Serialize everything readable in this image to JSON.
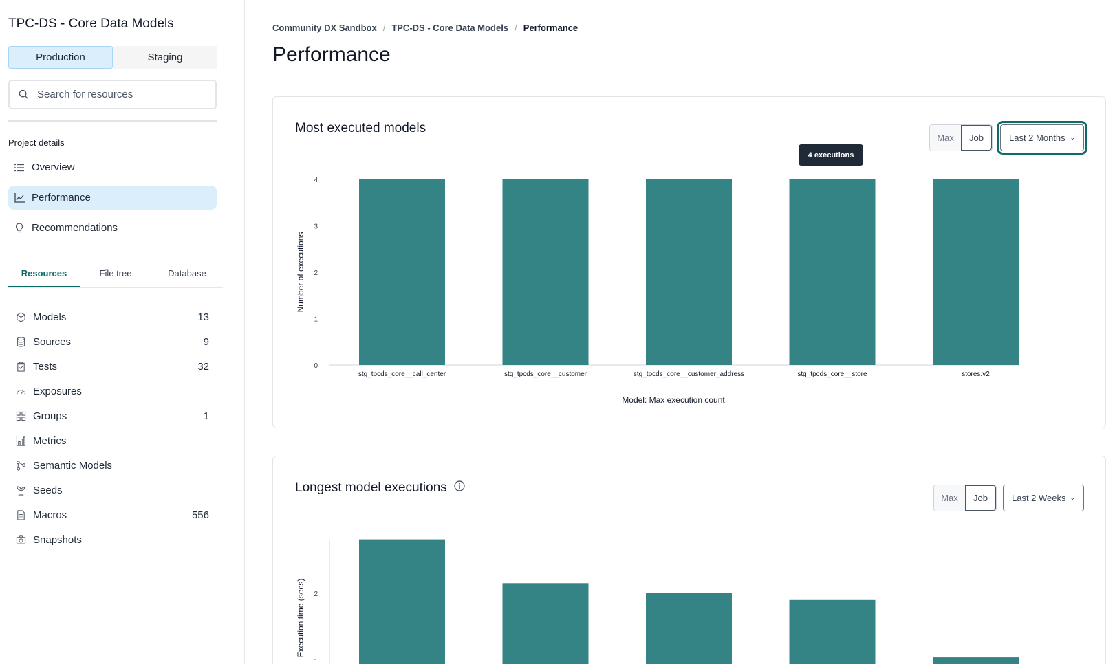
{
  "sidebar": {
    "project_title": "TPC-DS - Core Data Models",
    "env": {
      "production": "Production",
      "staging": "Staging"
    },
    "search_placeholder": "Search for resources",
    "section_label": "Project details",
    "nav": [
      {
        "label": "Overview",
        "icon": "list-icon"
      },
      {
        "label": "Performance",
        "icon": "line-chart-icon",
        "active": true
      },
      {
        "label": "Recommendations",
        "icon": "lightbulb-icon"
      }
    ],
    "tabs": [
      "Resources",
      "File tree",
      "Database"
    ],
    "resources": [
      {
        "label": "Models",
        "count": "13",
        "icon": "cube-icon"
      },
      {
        "label": "Sources",
        "count": "9",
        "icon": "database-icon"
      },
      {
        "label": "Tests",
        "count": "32",
        "icon": "clipboard-check-icon"
      },
      {
        "label": "Exposures",
        "count": "",
        "icon": "gauge-icon"
      },
      {
        "label": "Groups",
        "count": "1",
        "icon": "grid-icon"
      },
      {
        "label": "Metrics",
        "count": "",
        "icon": "bar-chart-icon"
      },
      {
        "label": "Semantic Models",
        "count": "",
        "icon": "nodes-icon"
      },
      {
        "label": "Seeds",
        "count": "",
        "icon": "sprout-icon"
      },
      {
        "label": "Macros",
        "count": "556",
        "icon": "file-text-icon"
      },
      {
        "label": "Snapshots",
        "count": "",
        "icon": "camera-icon"
      }
    ]
  },
  "breadcrumb": [
    "Community DX Sandbox",
    "TPC-DS - Core Data Models",
    "Performance"
  ],
  "page_title": "Performance",
  "cards": [
    {
      "title": "Most executed models",
      "seg": [
        "Max",
        "Job"
      ],
      "range": "Last 2 Months",
      "tooltip": "4 executions"
    },
    {
      "title": "Longest model executions",
      "seg": [
        "Max",
        "Job"
      ],
      "range": "Last 2 Weeks"
    }
  ],
  "colors": {
    "bar": "#348385",
    "accent": "#0f6b68",
    "active_bg": "#dbeefc"
  },
  "chart_data": [
    {
      "type": "bar",
      "categories": [
        "stg_tpcds_core__call_center",
        "stg_tpcds_core__customer",
        "stg_tpcds_core__customer_address",
        "stg_tpcds_core__store",
        "stores.v2"
      ],
      "values": [
        4,
        4,
        4,
        4,
        4
      ],
      "xlabel": "Model: Max execution count",
      "ylabel": "Number of executions",
      "yticks": [
        "0",
        "1",
        "2",
        "3",
        "4"
      ],
      "ylim": [
        0,
        4
      ],
      "grid": false
    },
    {
      "type": "bar",
      "values": [
        2.8,
        2.15,
        2.0,
        1.9,
        1.05
      ],
      "ylabel": "Execution time (secs)",
      "yticks": [
        "1",
        "2"
      ],
      "grid": false
    }
  ]
}
